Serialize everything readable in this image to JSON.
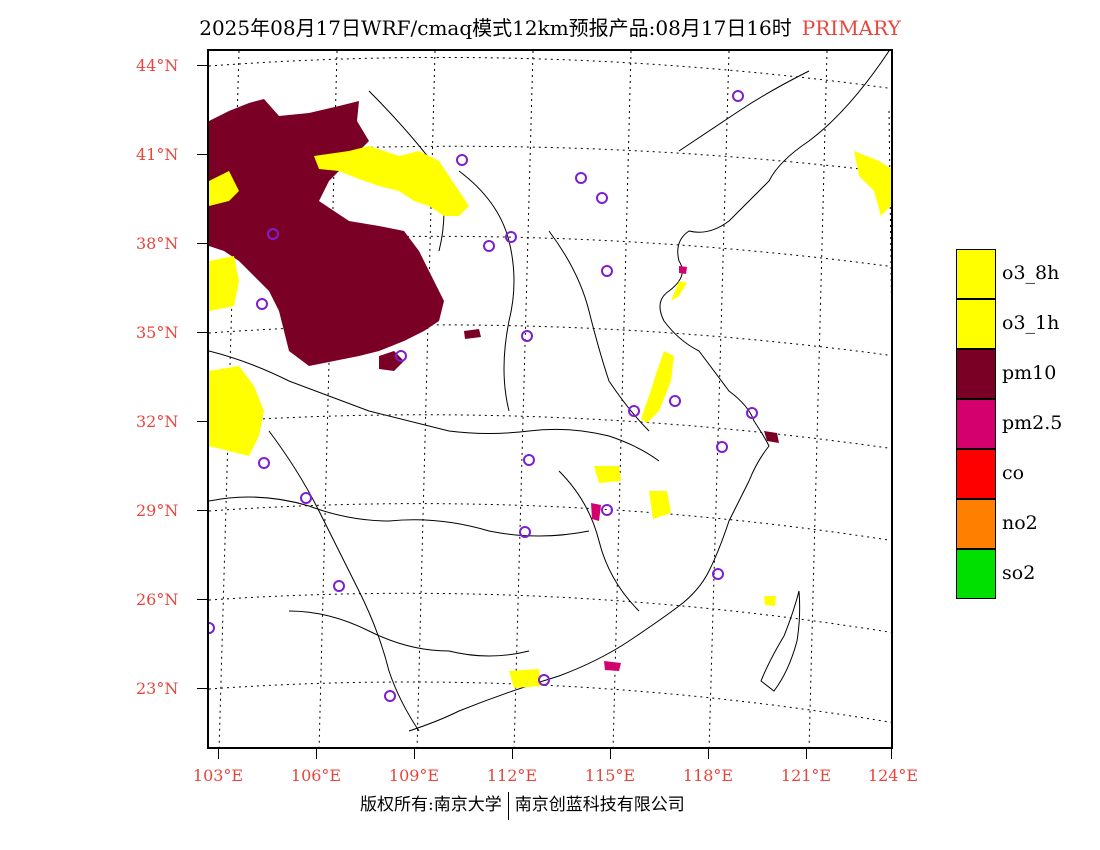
{
  "title": {
    "main": "2025年08月17日WRF/cmaq模式12km预报产品:08月17日16时",
    "tag": "PRIMARY"
  },
  "colors": {
    "label_red": "#e8453c",
    "o3": "#ffff00",
    "pm10": "#7a0026",
    "pm25": "#d4006e",
    "co": "#ff0000",
    "no2": "#ff7f00",
    "so2": "#00e000",
    "station_marker": "#7d1fd1"
  },
  "lat_labels": [
    "44°N",
    "41°N",
    "38°N",
    "35°N",
    "32°N",
    "29°N",
    "26°N",
    "23°N"
  ],
  "lon_labels": [
    "103°E",
    "106°E",
    "109°E",
    "112°E",
    "115°E",
    "118°E",
    "121°E",
    "124°E"
  ],
  "legend": {
    "items": [
      {
        "label": "o3_8h",
        "color": "#ffff00"
      },
      {
        "label": "o3_1h",
        "color": "#ffff00"
      },
      {
        "label": "pm10",
        "color": "#7a0026"
      },
      {
        "label": "pm2.5",
        "color": "#d4006e"
      },
      {
        "label": "co",
        "color": "#ff0000"
      },
      {
        "label": "no2",
        "color": "#ff7f00"
      },
      {
        "label": "so2",
        "color": "#00e000"
      }
    ]
  },
  "footer": {
    "left": "版权所有:南京大学",
    "right": "南京创蓝科技有限公司"
  }
}
